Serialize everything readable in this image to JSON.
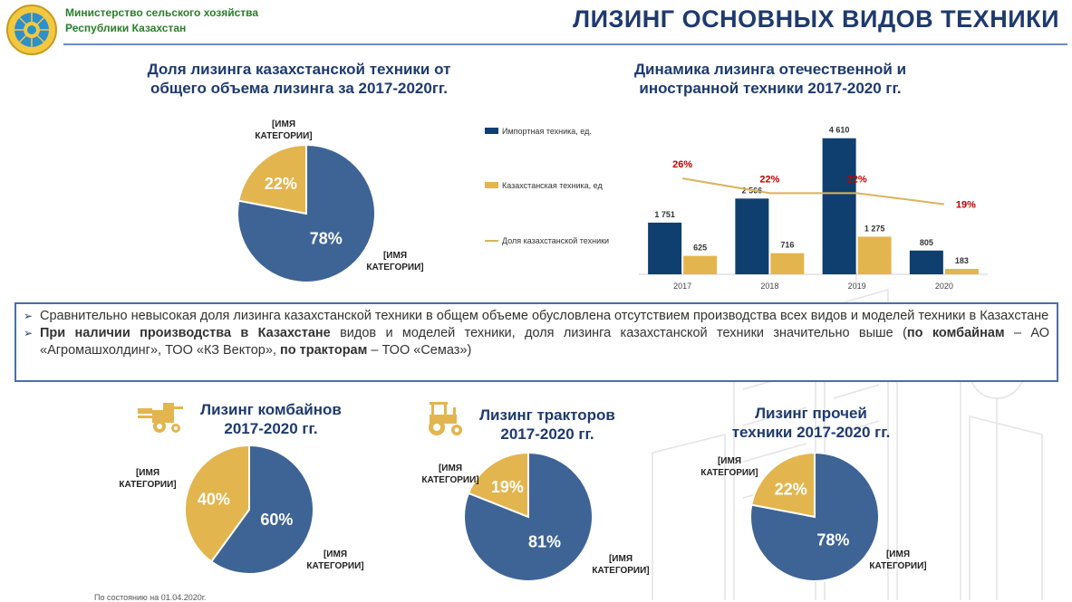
{
  "header": {
    "ministry_line1": "Министерство сельского хозяйства",
    "ministry_line2": "Республики Казахстан",
    "title": "ЛИЗИНГ ОСНОВНЫХ ВИДОВ ТЕХНИКИ"
  },
  "colors": {
    "blue": "#3e6496",
    "gold": "#e3b54e",
    "navy": "#0f3f6e",
    "red": "#c00000",
    "title": "#1e3a6e"
  },
  "chart_data": [
    {
      "type": "pie",
      "title_line1": "Доля лизинга казахстанской техники от",
      "title_line2": "общего объема лизинга за 2017-2020гг.",
      "slices": [
        {
          "label_line1": "[ИМЯ",
          "label_line2": "КАТЕГОРИИ]",
          "value": 22,
          "value_label": "22%",
          "color": "#e3b54e"
        },
        {
          "label_line1": "[ИМЯ",
          "label_line2": "КАТЕГОРИИ]",
          "value": 78,
          "value_label": "78%",
          "color": "#3e6496"
        }
      ]
    },
    {
      "type": "bar",
      "title_line1": "Динамика лизинга отечественной и",
      "title_line2": "иностранной техники 2017-2020 гг.",
      "categories": [
        "2017",
        "2018",
        "2019",
        "2020"
      ],
      "series": [
        {
          "name": "Импортная техника, ед.",
          "values": [
            1751,
            2566,
            4610,
            805
          ],
          "value_labels": [
            "1 751",
            "2 566",
            "4 610",
            "805"
          ],
          "color": "#0f3f6e"
        },
        {
          "name": "Казахстанская техника, ед",
          "values": [
            625,
            716,
            1275,
            183
          ],
          "value_labels": [
            "625",
            "716",
            "1 275",
            "183"
          ],
          "color": "#e3b54e"
        }
      ],
      "line_series": {
        "name": "Доля казахстанской техники",
        "values": [
          26,
          22,
          22,
          19
        ],
        "value_labels": [
          "26%",
          "22%",
          "22%",
          "19%"
        ],
        "color": "#d9b45a",
        "label_color": "#c00000"
      },
      "ylim": [
        0,
        5000
      ],
      "line_ylim": [
        0,
        40
      ]
    },
    {
      "type": "pie",
      "title_line1": "Лизинг комбайнов",
      "title_line2": "2017-2020 гг.",
      "icon": "harvester-icon",
      "slices": [
        {
          "label_line1": "[ИМЯ",
          "label_line2": "КАТЕГОРИИ]",
          "value": 40,
          "value_label": "40%",
          "color": "#e3b54e"
        },
        {
          "label_line1": "[ИМЯ",
          "label_line2": "КАТЕГОРИИ]",
          "value": 60,
          "value_label": "60%",
          "color": "#3e6496"
        }
      ]
    },
    {
      "type": "pie",
      "title_line1": "Лизинг тракторов",
      "title_line2": "2017-2020 гг.",
      "icon": "tractor-icon",
      "slices": [
        {
          "label_line1": "[ИМЯ",
          "label_line2": "КАТЕГОРИИ]",
          "value": 19,
          "value_label": "19%",
          "color": "#e3b54e"
        },
        {
          "label_line1": "[ИМЯ",
          "label_line2": "КАТЕГОРИИ]",
          "value": 81,
          "value_label": "81%",
          "color": "#3e6496"
        }
      ]
    },
    {
      "type": "pie",
      "title_line1": "Лизинг прочей",
      "title_line2": "техники 2017-2020 гг.",
      "slices": [
        {
          "label_line1": "[ИМЯ",
          "label_line2": "КАТЕГОРИИ]",
          "value": 22,
          "value_label": "22%",
          "color": "#e3b54e"
        },
        {
          "label_line1": "[ИМЯ",
          "label_line2": "КАТЕГОРИИ]",
          "value": 78,
          "value_label": "78%",
          "color": "#3e6496"
        }
      ]
    }
  ],
  "info": {
    "bullet1": "Сравнительно невысокая доля лизинга казахстанской техники в общем объеме обусловлена отсутствием производства всех видов и моделей техники  в Казахстане",
    "bullet2_bold1": "При наличии производства в Казахстане",
    "bullet2_text1": " видов и моделей техники, доля лизинга казахстанской техники значительно выше (",
    "bullet2_bold2": "по комбайнам",
    "bullet2_text2": " – АО «Агромашхолдинг»,  ТОО «КЗ Вектор»,  ",
    "bullet2_bold3": "по тракторам",
    "bullet2_text3": " – ТОО «Семаз»)"
  },
  "footnote": "По состоянию на 01.04.2020г."
}
